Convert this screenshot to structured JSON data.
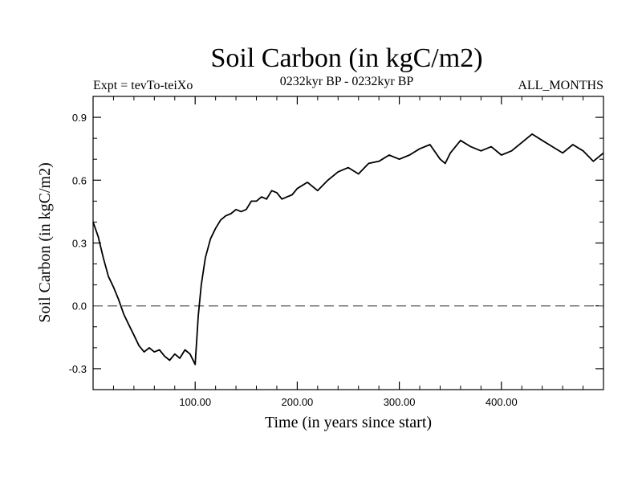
{
  "chart_data": {
    "type": "line",
    "title": "Soil Carbon (in kgC/m2)",
    "subtitle_left": "Expt = tevTo-teiXo",
    "subtitle_center": "0232kyr BP - 0232kyr BP",
    "subtitle_right": "ALL_MONTHS",
    "xlabel": "Time (in years since start)",
    "ylabel": "Soil Carbon (in kgC/m2)",
    "xlim": [
      0,
      500
    ],
    "ylim": [
      -0.4,
      1.0
    ],
    "xticks": [
      100,
      200,
      300,
      400
    ],
    "xtick_labels": [
      "100.00",
      "200.00",
      "300.00",
      "400.00"
    ],
    "yticks": [
      -0.3,
      0.0,
      0.3,
      0.6,
      0.9
    ],
    "ytick_labels": [
      "-0.3",
      "0.0",
      "0.3",
      "0.6",
      "0.9"
    ],
    "reference_line": {
      "y": 0.0,
      "style": "dashed",
      "color": "#777777"
    },
    "line_color": "#000000",
    "series": [
      {
        "x": [
          0,
          5,
          10,
          15,
          20,
          25,
          30,
          35,
          40,
          45,
          50,
          55,
          60,
          65,
          70,
          75,
          80,
          85,
          90,
          95,
          100,
          103,
          106,
          110,
          115,
          120,
          125,
          130,
          135,
          140,
          145,
          150,
          155,
          160,
          165,
          170,
          175,
          180,
          185,
          190,
          195,
          200,
          210,
          220,
          230,
          240,
          250,
          260,
          270,
          280,
          290,
          300,
          310,
          320,
          330,
          340,
          345,
          350,
          360,
          370,
          380,
          390,
          400,
          410,
          420,
          430,
          440,
          450,
          460,
          470,
          480,
          490,
          500
        ],
        "y": [
          0.4,
          0.33,
          0.23,
          0.14,
          0.09,
          0.03,
          -0.04,
          -0.09,
          -0.14,
          -0.19,
          -0.22,
          -0.2,
          -0.22,
          -0.21,
          -0.24,
          -0.26,
          -0.23,
          -0.25,
          -0.21,
          -0.23,
          -0.28,
          -0.05,
          0.1,
          0.23,
          0.32,
          0.37,
          0.41,
          0.43,
          0.44,
          0.46,
          0.45,
          0.46,
          0.5,
          0.5,
          0.52,
          0.51,
          0.55,
          0.54,
          0.51,
          0.52,
          0.53,
          0.56,
          0.59,
          0.55,
          0.6,
          0.64,
          0.66,
          0.63,
          0.68,
          0.69,
          0.72,
          0.7,
          0.72,
          0.75,
          0.77,
          0.7,
          0.68,
          0.73,
          0.79,
          0.76,
          0.74,
          0.76,
          0.72,
          0.74,
          0.78,
          0.82,
          0.79,
          0.76,
          0.73,
          0.77,
          0.74,
          0.69,
          0.73
        ]
      }
    ]
  }
}
